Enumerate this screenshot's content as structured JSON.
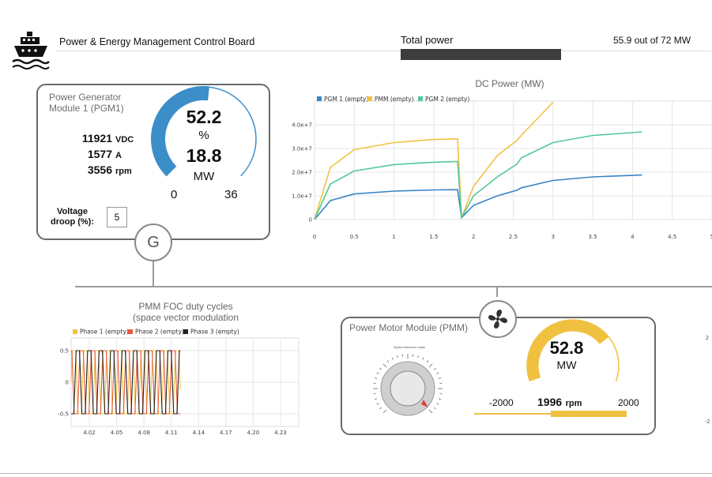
{
  "header": {
    "title": "Power & Energy Management Control Board",
    "total_power_label": "Total power",
    "total_power_value": "55.9",
    "total_power_suffix": "out of 72 MW",
    "total_power_used": 55.9,
    "total_power_max": 72,
    "logo_icon": "ship-icon"
  },
  "pgm1": {
    "title_line1": "Power Generator",
    "title_line2": "Module 1 (PGM1)",
    "voltage": "11921",
    "voltage_unit": "VDC",
    "current": "1577",
    "current_unit": "A",
    "speed": "3556",
    "speed_unit": "rpm",
    "gauge_percent": "52.2",
    "gauge_percent_unit": "%",
    "gauge_power": "18.8",
    "gauge_power_unit": "MW",
    "gauge_min": "0",
    "gauge_max": "36",
    "gauge_fraction": 0.522,
    "droop_label_line1": "Voltage",
    "droop_label_line2": "droop (%):",
    "droop_value": "5",
    "node_label": "G",
    "accent": "#3b8ec8"
  },
  "dc_chart": {
    "title": "DC Power (MW)"
  },
  "foc_chart": {
    "title_line1": "PMM FOC duty cycles",
    "title_line2": "(space vector modulation"
  },
  "pmm": {
    "title": "Power Motor Module (PMM)",
    "gauge_power": "52.8",
    "gauge_power_unit": "MW",
    "gauge_fraction": 0.733,
    "speed_min": "-2000",
    "speed_max": "2000",
    "speed_value": "1996",
    "speed_unit": "rpm",
    "speed_fraction": 0.499,
    "accent": "#f0c040",
    "node_icon": "fan-icon",
    "knob_caption": "Speed reference value",
    "knob_icon": "speed-knob-icon"
  },
  "edge": {
    "right_tick_top": "2",
    "right_tick_bottom": "-2"
  },
  "chart_data": [
    {
      "type": "line",
      "title": "DC Power (MW)",
      "x": [
        0,
        0.2,
        0.5,
        1.0,
        1.5,
        1.8,
        1.85,
        2.0,
        2.3,
        2.55,
        2.6,
        3.0,
        3.5,
        4.12
      ],
      "series": [
        {
          "name": "PGM 1 (empty)",
          "color": "#3a85c6",
          "values": [
            0,
            8000000,
            10800000,
            12000000,
            12500000,
            12600000,
            800000,
            6000000,
            10000000,
            12400000,
            13400000,
            16500000,
            18000000,
            18800000
          ]
        },
        {
          "name": "PMM (empty)",
          "color": "#f2c342",
          "values": [
            0,
            22000000,
            29500000,
            32500000,
            33800000,
            34000000,
            800000,
            14000000,
            27000000,
            33500000,
            35500000,
            49500000,
            null,
            null
          ]
        },
        {
          "name": "PGM 2 (empty)",
          "color": "#54c999",
          "values": [
            0,
            15000000,
            20500000,
            23200000,
            24200000,
            24500000,
            800000,
            10000000,
            18000000,
            23500000,
            26000000,
            32500000,
            35500000,
            37000000
          ]
        }
      ],
      "ylim": [
        0,
        50000000
      ],
      "xlim": [
        0,
        5.0
      ],
      "yticks": [
        "0",
        "1.0e+7",
        "2.0e+7",
        "3.0e+7",
        "4.0e+7"
      ],
      "xticks": [
        "0",
        "0.5",
        "1",
        "1.5",
        "2",
        "2.5",
        "3",
        "3.5",
        "4",
        "4.5",
        "5"
      ],
      "grid": true,
      "legend": "top-left"
    },
    {
      "type": "line",
      "title": "PMM FOC duty cycles (space vector modulation",
      "xlim": [
        4.0,
        4.25
      ],
      "ylim": [
        -0.7,
        0.7
      ],
      "xticks": [
        "4.02",
        "4.05",
        "4.08",
        "4.11",
        "4.14",
        "4.17",
        "4.20",
        "4.23"
      ],
      "yticks": [
        "0.5",
        "0",
        "-0.5"
      ],
      "x_data_range": [
        4.0,
        4.12
      ],
      "period": 0.0126,
      "amplitude": 0.5,
      "series": [
        {
          "name": "Phase 1 (empty)",
          "color": "#f2c342",
          "phase_deg": 0
        },
        {
          "name": "Phase 2 (empty)",
          "color": "#ea5a3a",
          "phase_deg": 120
        },
        {
          "name": "Phase 3 (empty)",
          "color": "#222222",
          "phase_deg": 240
        }
      ],
      "grid": true,
      "legend": "top-left"
    }
  ]
}
